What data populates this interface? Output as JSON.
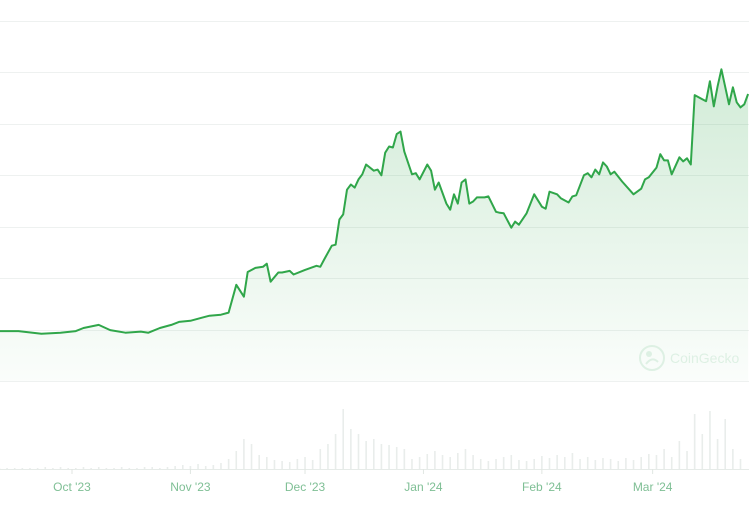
{
  "chart_data": {
    "type": "area",
    "title": "",
    "xlabel": "",
    "ylabel": "",
    "grid": true,
    "legend": "none",
    "y_axis_labels_shown": false,
    "colors": {
      "line": "#30a64a",
      "fill": "#30a64a",
      "grid": "#eef1f0",
      "volume": "#e9edeb",
      "tick_label": "#7fbf95"
    },
    "x_ticks": [
      {
        "date": "2023-10-01",
        "label": "Oct '23"
      },
      {
        "date": "2023-11-01",
        "label": "Nov '23"
      },
      {
        "date": "2023-12-01",
        "label": "Dec '23"
      },
      {
        "date": "2024-01-01",
        "label": "Jan '24"
      },
      {
        "date": "2024-02-01",
        "label": "Feb '24"
      },
      {
        "date": "2024-03-01",
        "label": "Mar '24"
      }
    ],
    "ylim": [
      0,
      70
    ],
    "price": [
      [
        "2023-09-12",
        9.7
      ],
      [
        "2023-09-17",
        9.7
      ],
      [
        "2023-09-23",
        9.2
      ],
      [
        "2023-09-28",
        9.4
      ],
      [
        "2023-10-02",
        9.7
      ],
      [
        "2023-10-04",
        10.3
      ],
      [
        "2023-10-08",
        10.9
      ],
      [
        "2023-10-11",
        9.9
      ],
      [
        "2023-10-15",
        9.4
      ],
      [
        "2023-10-19",
        9.6
      ],
      [
        "2023-10-21",
        9.4
      ],
      [
        "2023-10-24",
        10.3
      ],
      [
        "2023-10-27",
        10.9
      ],
      [
        "2023-10-29",
        11.5
      ],
      [
        "2023-11-01",
        11.7
      ],
      [
        "2023-11-04",
        12.3
      ],
      [
        "2023-11-06",
        12.7
      ],
      [
        "2023-11-09",
        12.9
      ],
      [
        "2023-11-11",
        13.3
      ],
      [
        "2023-11-13",
        18.7
      ],
      [
        "2023-11-15",
        16.4
      ],
      [
        "2023-11-16",
        21.2
      ],
      [
        "2023-11-18",
        22.0
      ],
      [
        "2023-11-20",
        22.2
      ],
      [
        "2023-11-21",
        22.8
      ],
      [
        "2023-11-22",
        19.3
      ],
      [
        "2023-11-24",
        21.1
      ],
      [
        "2023-11-25",
        21.1
      ],
      [
        "2023-11-27",
        21.4
      ],
      [
        "2023-11-28",
        20.7
      ],
      [
        "2023-12-01",
        21.6
      ],
      [
        "2023-12-04",
        22.4
      ],
      [
        "2023-12-05",
        22.2
      ],
      [
        "2023-12-06",
        23.6
      ],
      [
        "2023-12-08",
        26.3
      ],
      [
        "2023-12-09",
        26.5
      ],
      [
        "2023-12-10",
        31.4
      ],
      [
        "2023-12-11",
        32.4
      ],
      [
        "2023-12-12",
        37.2
      ],
      [
        "2023-12-13",
        38.2
      ],
      [
        "2023-12-14",
        37.6
      ],
      [
        "2023-12-15",
        39.2
      ],
      [
        "2023-12-16",
        40.2
      ],
      [
        "2023-12-17",
        42.1
      ],
      [
        "2023-12-19",
        40.9
      ],
      [
        "2023-12-20",
        41.1
      ],
      [
        "2023-12-21",
        40.0
      ],
      [
        "2023-12-22",
        44.4
      ],
      [
        "2023-12-23",
        45.6
      ],
      [
        "2023-12-24",
        45.4
      ],
      [
        "2023-12-25",
        48.0
      ],
      [
        "2023-12-26",
        48.5
      ],
      [
        "2023-12-27",
        44.6
      ],
      [
        "2023-12-29",
        40.2
      ],
      [
        "2023-12-30",
        40.4
      ],
      [
        "2023-12-31",
        39.2
      ],
      [
        "2024-01-02",
        42.1
      ],
      [
        "2024-01-03",
        40.9
      ],
      [
        "2024-01-04",
        37.2
      ],
      [
        "2024-01-05",
        38.6
      ],
      [
        "2024-01-07",
        34.5
      ],
      [
        "2024-01-08",
        33.3
      ],
      [
        "2024-01-09",
        36.3
      ],
      [
        "2024-01-10",
        34.5
      ],
      [
        "2024-01-11",
        38.6
      ],
      [
        "2024-01-12",
        39.2
      ],
      [
        "2024-01-13",
        34.5
      ],
      [
        "2024-01-14",
        34.9
      ],
      [
        "2024-01-15",
        35.7
      ],
      [
        "2024-01-17",
        35.7
      ],
      [
        "2024-01-18",
        35.9
      ],
      [
        "2024-01-20",
        32.9
      ],
      [
        "2024-01-21",
        32.7
      ],
      [
        "2024-01-22",
        32.6
      ],
      [
        "2024-01-24",
        29.8
      ],
      [
        "2024-01-25",
        31.0
      ],
      [
        "2024-01-26",
        30.4
      ],
      [
        "2024-01-28",
        32.6
      ],
      [
        "2024-01-30",
        36.3
      ],
      [
        "2024-02-01",
        33.9
      ],
      [
        "2024-02-02",
        33.5
      ],
      [
        "2024-02-03",
        36.8
      ],
      [
        "2024-02-05",
        36.3
      ],
      [
        "2024-02-06",
        35.5
      ],
      [
        "2024-02-08",
        34.7
      ],
      [
        "2024-02-09",
        35.9
      ],
      [
        "2024-02-10",
        36.1
      ],
      [
        "2024-02-12",
        40.0
      ],
      [
        "2024-02-13",
        40.4
      ],
      [
        "2024-02-14",
        39.6
      ],
      [
        "2024-02-15",
        41.1
      ],
      [
        "2024-02-16",
        40.2
      ],
      [
        "2024-02-17",
        42.5
      ],
      [
        "2024-02-18",
        41.7
      ],
      [
        "2024-02-19",
        40.2
      ],
      [
        "2024-02-20",
        40.7
      ],
      [
        "2024-02-22",
        38.8
      ],
      [
        "2024-02-25",
        36.3
      ],
      [
        "2024-02-27",
        37.4
      ],
      [
        "2024-02-28",
        39.2
      ],
      [
        "2024-02-29",
        39.6
      ],
      [
        "2024-03-02",
        41.5
      ],
      [
        "2024-03-03",
        44.1
      ],
      [
        "2024-03-04",
        42.9
      ],
      [
        "2024-03-05",
        42.9
      ],
      [
        "2024-03-06",
        40.2
      ],
      [
        "2024-03-08",
        43.5
      ],
      [
        "2024-03-09",
        42.7
      ],
      [
        "2024-03-10",
        43.3
      ],
      [
        "2024-03-11",
        42.1
      ],
      [
        "2024-03-12",
        55.6
      ],
      [
        "2024-03-14",
        54.8
      ],
      [
        "2024-03-15",
        54.4
      ],
      [
        "2024-03-16",
        58.3
      ],
      [
        "2024-03-17",
        53.4
      ],
      [
        "2024-03-18",
        57.3
      ],
      [
        "2024-03-19",
        60.6
      ],
      [
        "2024-03-21",
        53.8
      ],
      [
        "2024-03-22",
        57.1
      ],
      [
        "2024-03-23",
        54.2
      ],
      [
        "2024-03-24",
        53.2
      ],
      [
        "2024-03-25",
        53.8
      ],
      [
        "2024-03-26",
        55.8
      ]
    ],
    "volume": {
      "start": "2023-09-12",
      "interval_days": 2,
      "values": [
        1,
        1,
        1,
        1,
        1,
        1,
        2,
        1,
        2,
        1,
        1,
        2,
        1,
        2,
        1,
        1,
        2,
        1,
        1,
        2,
        2,
        1,
        2,
        3,
        4,
        3,
        5,
        3,
        4,
        6,
        10,
        18,
        30,
        25,
        14,
        12,
        9,
        8,
        7,
        10,
        12,
        9,
        20,
        25,
        35,
        60,
        40,
        35,
        28,
        30,
        25,
        24,
        22,
        20,
        10,
        12,
        15,
        18,
        14,
        12,
        16,
        20,
        14,
        10,
        8,
        10,
        12,
        14,
        9,
        8,
        10,
        13,
        11,
        14,
        12,
        16,
        10,
        12,
        9,
        11,
        10,
        8,
        11,
        9,
        12,
        15,
        14,
        20,
        12,
        28,
        18,
        55,
        35,
        58,
        30,
        50,
        20,
        10
      ]
    }
  },
  "watermark": {
    "text": "CoinGecko",
    "icon": "gecko-logo-icon"
  }
}
